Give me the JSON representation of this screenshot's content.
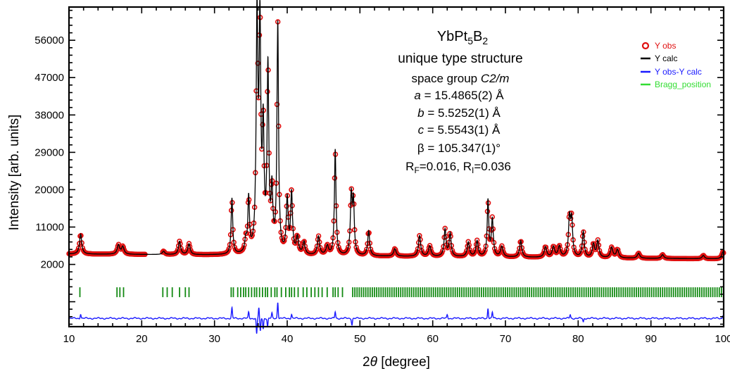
{
  "chart_data": {
    "type": "line",
    "xlabel_parts": {
      "prefix": "2",
      "theta": "θ",
      "suffix": " [degree]"
    },
    "ylabel": "Intensity [arb. units]",
    "xlim": [
      10,
      100
    ],
    "ylim": [
      -13000,
      64000
    ],
    "xticks": [
      10,
      20,
      30,
      40,
      50,
      60,
      70,
      80,
      90,
      100
    ],
    "yticks": [
      2000,
      11000,
      20000,
      29000,
      38000,
      47000,
      56000
    ],
    "annotation": {
      "formula": {
        "a": "YbPt",
        "a_sub": "5",
        "b": "B",
        "b_sub": "2"
      },
      "line1": "unique type structure",
      "line2": {
        "text": "space group ",
        "italic": "C2/m"
      },
      "line3": {
        "sym": "a",
        "text": " = 15.4865(2) Å"
      },
      "line4": {
        "sym": "b",
        "text": " = 5.5252(1) Å"
      },
      "line5": {
        "sym": "c",
        "text": " = 5.5543(1) Å"
      },
      "line6": "β = 105.347(1)°",
      "line7": {
        "r": "R",
        "f": "F",
        "mid": "=0.016, R",
        "i": "I",
        "end": "=0.036"
      }
    },
    "legend": {
      "placement": "top-right",
      "items": [
        {
          "name": "Y obs",
          "color": "#e01010",
          "marker": "circle"
        },
        {
          "name": "Y calc",
          "color": "#000000",
          "marker": "line"
        },
        {
          "name": "Y obs-Y calc",
          "color": "#1a1aff",
          "marker": "line"
        },
        {
          "name": "Bragg_position",
          "color": "#33dd33",
          "marker": "line"
        }
      ]
    },
    "background": {
      "start": 4500,
      "end": 3300
    },
    "peaks": [
      [
        11.6,
        4800,
        0.18
      ],
      [
        16.8,
        2200,
        0.2
      ],
      [
        17.4,
        1800,
        0.2
      ],
      [
        23.0,
        800,
        0.2
      ],
      [
        25.2,
        3200,
        0.18
      ],
      [
        26.5,
        2600,
        0.18
      ],
      [
        32.4,
        13500,
        0.13
      ],
      [
        34.3,
        3000,
        0.15
      ],
      [
        34.7,
        13000,
        0.13
      ],
      [
        35.85,
        56000,
        0.14
      ],
      [
        36.25,
        52000,
        0.14
      ],
      [
        36.7,
        28000,
        0.14
      ],
      [
        37.35,
        44000,
        0.14
      ],
      [
        37.9,
        14000,
        0.14
      ],
      [
        38.7,
        55000,
        0.13
      ],
      [
        40.0,
        13000,
        0.15
      ],
      [
        40.6,
        14500,
        0.15
      ],
      [
        41.4,
        4000,
        0.18
      ],
      [
        42.3,
        3000,
        0.18
      ],
      [
        44.3,
        4500,
        0.18
      ],
      [
        45.5,
        2200,
        0.2
      ],
      [
        46.6,
        25500,
        0.13
      ],
      [
        48.8,
        14000,
        0.14
      ],
      [
        49.1,
        12500,
        0.14
      ],
      [
        51.2,
        6000,
        0.16
      ],
      [
        54.8,
        1800,
        0.2
      ],
      [
        58.2,
        5000,
        0.18
      ],
      [
        59.6,
        2500,
        0.2
      ],
      [
        61.7,
        6500,
        0.16
      ],
      [
        62.4,
        5500,
        0.16
      ],
      [
        64.9,
        3500,
        0.18
      ],
      [
        66.1,
        3800,
        0.18
      ],
      [
        67.6,
        13500,
        0.13
      ],
      [
        68.2,
        9000,
        0.15
      ],
      [
        69.5,
        2500,
        0.2
      ],
      [
        72.1,
        4000,
        0.18
      ],
      [
        75.5,
        2500,
        0.2
      ],
      [
        76.6,
        2500,
        0.2
      ],
      [
        77.4,
        2600,
        0.2
      ],
      [
        78.8,
        9000,
        0.16
      ],
      [
        79.1,
        8500,
        0.16
      ],
      [
        80.7,
        6200,
        0.16
      ],
      [
        82.1,
        3200,
        0.18
      ],
      [
        82.7,
        4000,
        0.18
      ],
      [
        84.6,
        2500,
        0.2
      ],
      [
        85.4,
        2000,
        0.2
      ],
      [
        88.3,
        1200,
        0.2
      ],
      [
        91.6,
        900,
        0.2
      ],
      [
        97.2,
        800,
        0.2
      ],
      [
        99.9,
        1700,
        0.2
      ]
    ],
    "obs_gap": [
      20.5,
      22.8
    ],
    "bragg_y": -4700,
    "bragg_positions": [
      11.5,
      16.6,
      17.0,
      17.5,
      22.9,
      23.5,
      24.2,
      25.2,
      26.0,
      26.5,
      32.3,
      32.6,
      33.2,
      33.6,
      34.0,
      34.3,
      34.7,
      35.1,
      35.5,
      35.8,
      36.2,
      36.6,
      37.0,
      37.3,
      37.8,
      38.3,
      38.6,
      39.2,
      39.8,
      40.3,
      40.6,
      41.0,
      41.5,
      42.2,
      42.7,
      43.3,
      43.8,
      44.3,
      44.8,
      45.5,
      46.3,
      46.6,
      47.0,
      47.6,
      49.0,
      49.3,
      49.6,
      49.9,
      50.2,
      50.5,
      50.8,
      51.1,
      51.4,
      51.7,
      52.0,
      52.3,
      52.6,
      52.9,
      53.2,
      53.5,
      53.8,
      54.1,
      54.4,
      54.7,
      55.0,
      55.3,
      55.6,
      55.9,
      56.2,
      56.5,
      56.8,
      57.1,
      57.4,
      57.7,
      58.0,
      58.3,
      58.6,
      58.9,
      59.2,
      59.5,
      59.8,
      60.1,
      60.4,
      60.7,
      61.0,
      61.3,
      61.6,
      61.9,
      62.2,
      62.5,
      62.8,
      63.1,
      63.4,
      63.7,
      64.0,
      64.3,
      64.6,
      64.9,
      65.2,
      65.5,
      65.8,
      66.1,
      66.4,
      66.7,
      67.0,
      67.3,
      67.6,
      67.9,
      68.2,
      68.5,
      68.8,
      69.1,
      69.4,
      69.7,
      70.0,
      70.3,
      70.6,
      70.9,
      71.2,
      71.5,
      71.8,
      72.1,
      72.4,
      72.7,
      73.0,
      73.3,
      73.6,
      73.9,
      74.2,
      74.5,
      74.8,
      75.1,
      75.4,
      75.7,
      76.0,
      76.3,
      76.6,
      76.9,
      77.2,
      77.5,
      77.8,
      78.1,
      78.4,
      78.7,
      79.0,
      79.3,
      79.6,
      79.9,
      80.2,
      80.5,
      80.8,
      81.1,
      81.4,
      81.7,
      82.0,
      82.3,
      82.6,
      82.9,
      83.2,
      83.5,
      83.8,
      84.1,
      84.4,
      84.7,
      85.0,
      85.3,
      85.6,
      85.9,
      86.2,
      86.5,
      86.8,
      87.1,
      87.4,
      87.7,
      88.0,
      88.3,
      88.6,
      88.9,
      89.2,
      89.5,
      89.8,
      90.1,
      90.4,
      90.7,
      91.0,
      91.3,
      91.6,
      91.9,
      92.2,
      92.5,
      92.8,
      93.1,
      93.4,
      93.7,
      94.0,
      94.3,
      94.6,
      94.9,
      95.2,
      95.5,
      95.8,
      96.1,
      96.4,
      96.7,
      97.0,
      97.3,
      97.6,
      97.9,
      98.2,
      98.5,
      98.8,
      99.1,
      99.4,
      99.7
    ],
    "diff_baseline": -11000,
    "diff_spikes": [
      [
        11.6,
        1100
      ],
      [
        32.4,
        2500
      ],
      [
        34.7,
        1500
      ],
      [
        35.8,
        -3800
      ],
      [
        36.1,
        2500
      ],
      [
        36.3,
        -3200
      ],
      [
        36.7,
        -2500
      ],
      [
        37.3,
        -2000
      ],
      [
        37.9,
        1200
      ],
      [
        38.7,
        4000
      ],
      [
        40.6,
        1000
      ],
      [
        46.6,
        1600
      ],
      [
        48.9,
        -1500
      ],
      [
        62.0,
        900
      ],
      [
        67.6,
        2500
      ],
      [
        68.2,
        1500
      ],
      [
        78.9,
        900
      ],
      [
        80.7,
        -900
      ],
      [
        99.9,
        800
      ]
    ]
  }
}
